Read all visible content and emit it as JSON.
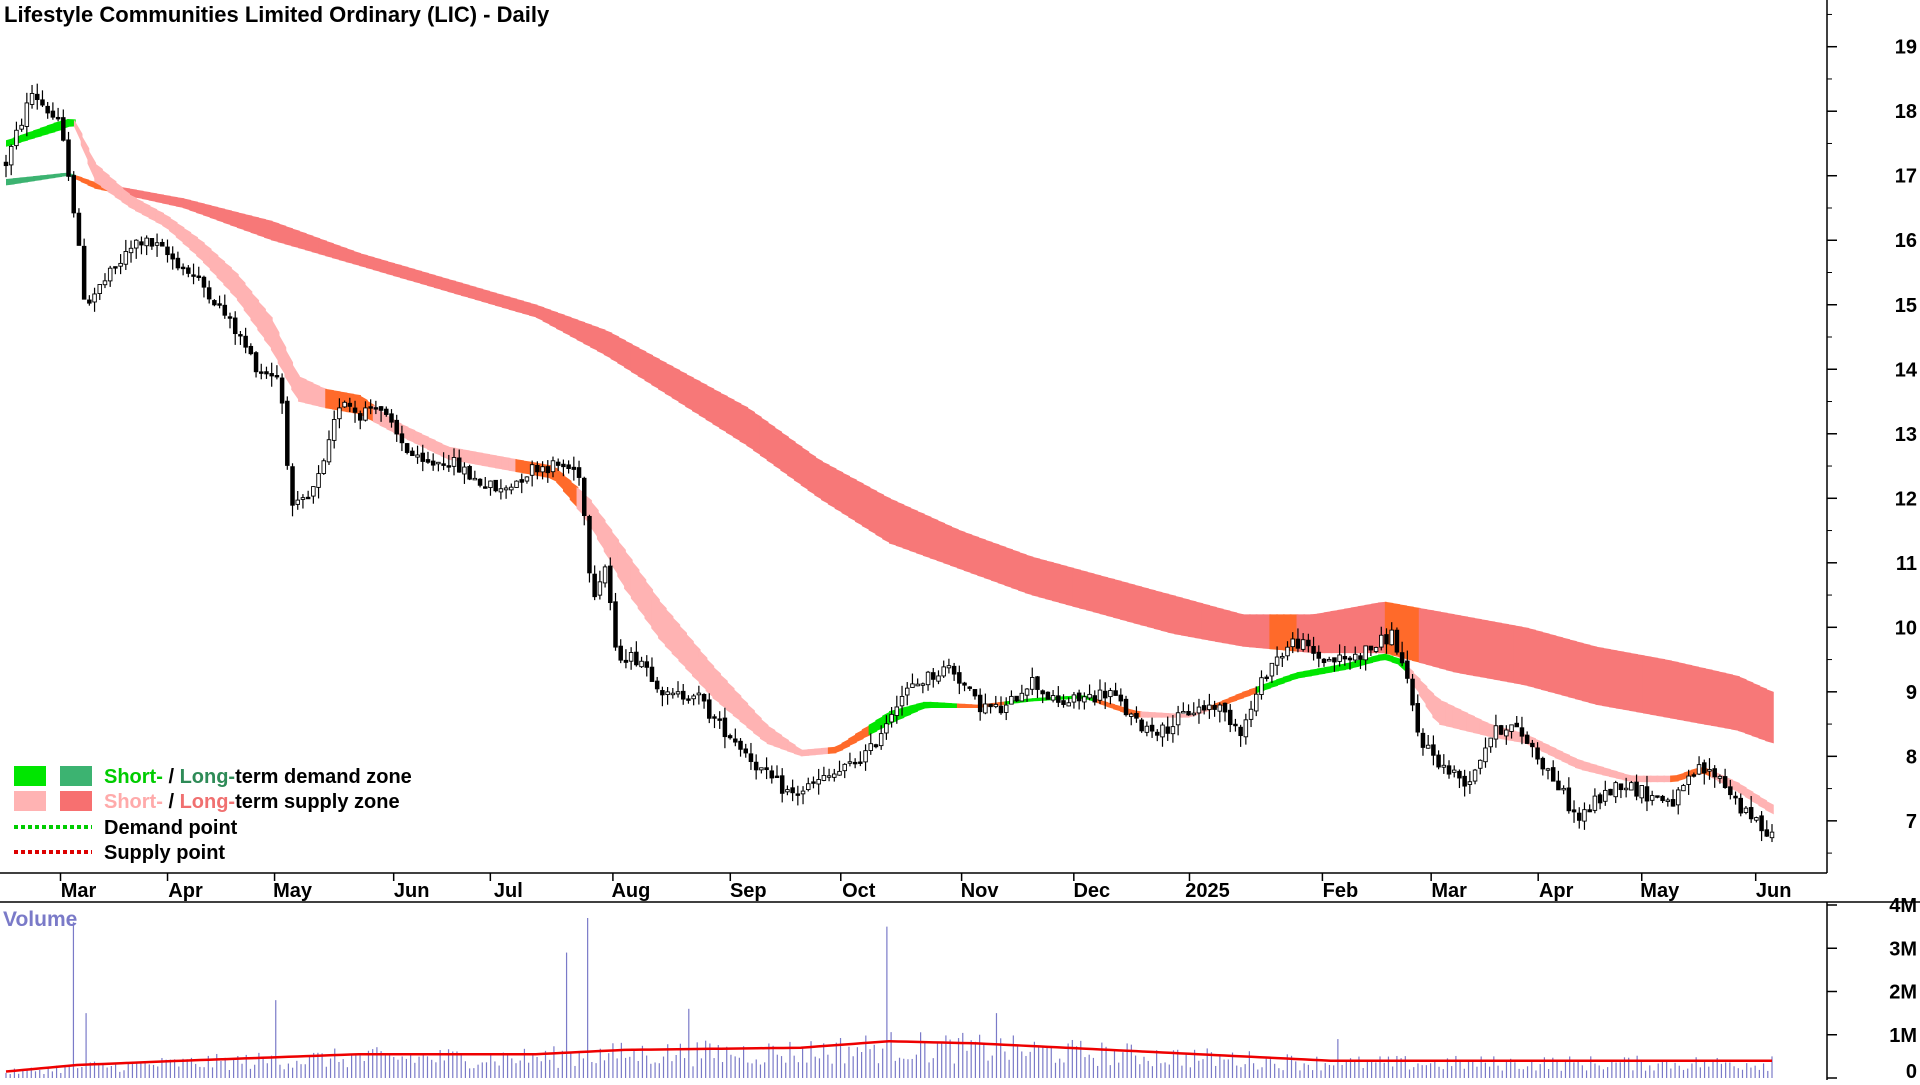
{
  "chart_data": {
    "type": "candlestick",
    "title": "Lifestyle Communities Limited Ordinary (LIC) - Daily",
    "x_tick_labels": [
      "Mar",
      "Apr",
      "May",
      "Jun",
      "Jul",
      "Aug",
      "Sep",
      "Oct",
      "Nov",
      "Dec",
      "2025",
      "Feb",
      "Mar",
      "Apr",
      "May",
      "Jun"
    ],
    "x_tick_positions": [
      0.042,
      0.104,
      0.166,
      0.235,
      0.291,
      0.362,
      0.43,
      0.494,
      0.564,
      0.629,
      0.696,
      0.773,
      0.836,
      0.898,
      0.958,
      1.024
    ],
    "y_ticks": [
      7,
      8,
      9,
      10,
      11,
      12,
      13,
      14,
      15,
      16,
      17,
      18,
      19
    ],
    "ylim": [
      6.3,
      19.6
    ],
    "price_path": [
      [
        0.0,
        17.2
      ],
      [
        0.015,
        18.3
      ],
      [
        0.03,
        17.8
      ],
      [
        0.036,
        17.0
      ],
      [
        0.045,
        15.0
      ],
      [
        0.06,
        15.5
      ],
      [
        0.075,
        16.0
      ],
      [
        0.085,
        15.9
      ],
      [
        0.1,
        15.6
      ],
      [
        0.115,
        15.2
      ],
      [
        0.13,
        14.6
      ],
      [
        0.143,
        14.0
      ],
      [
        0.155,
        13.9
      ],
      [
        0.162,
        11.8
      ],
      [
        0.172,
        12.0
      ],
      [
        0.18,
        12.5
      ],
      [
        0.19,
        13.6
      ],
      [
        0.2,
        13.3
      ],
      [
        0.21,
        13.5
      ],
      [
        0.22,
        13.0
      ],
      [
        0.235,
        12.5
      ],
      [
        0.25,
        12.6
      ],
      [
        0.265,
        12.3
      ],
      [
        0.28,
        12.1
      ],
      [
        0.3,
        12.5
      ],
      [
        0.315,
        12.5
      ],
      [
        0.325,
        12.4
      ],
      [
        0.332,
        10.5
      ],
      [
        0.34,
        11.0
      ],
      [
        0.345,
        9.6
      ],
      [
        0.36,
        9.5
      ],
      [
        0.375,
        8.9
      ],
      [
        0.39,
        9.0
      ],
      [
        0.4,
        8.6
      ],
      [
        0.415,
        8.2
      ],
      [
        0.43,
        7.7
      ],
      [
        0.445,
        7.4
      ],
      [
        0.46,
        7.6
      ],
      [
        0.475,
        7.8
      ],
      [
        0.49,
        8.1
      ],
      [
        0.505,
        8.9
      ],
      [
        0.52,
        9.2
      ],
      [
        0.535,
        9.4
      ],
      [
        0.55,
        8.8
      ],
      [
        0.565,
        8.7
      ],
      [
        0.58,
        9.2
      ],
      [
        0.595,
        8.8
      ],
      [
        0.61,
        8.9
      ],
      [
        0.625,
        9.0
      ],
      [
        0.64,
        8.5
      ],
      [
        0.655,
        8.4
      ],
      [
        0.67,
        8.7
      ],
      [
        0.685,
        8.8
      ],
      [
        0.7,
        8.4
      ],
      [
        0.715,
        9.4
      ],
      [
        0.73,
        9.8
      ],
      [
        0.745,
        9.5
      ],
      [
        0.76,
        9.5
      ],
      [
        0.775,
        9.7
      ],
      [
        0.785,
        9.9
      ],
      [
        0.792,
        9.3
      ],
      [
        0.8,
        8.3
      ],
      [
        0.815,
        7.8
      ],
      [
        0.828,
        7.6
      ],
      [
        0.84,
        8.3
      ],
      [
        0.85,
        8.5
      ],
      [
        0.86,
        8.3
      ],
      [
        0.87,
        7.9
      ],
      [
        0.88,
        7.5
      ],
      [
        0.89,
        7.0
      ],
      [
        0.9,
        7.3
      ],
      [
        0.915,
        7.6
      ],
      [
        0.93,
        7.4
      ],
      [
        0.945,
        7.3
      ],
      [
        0.958,
        7.8
      ],
      [
        0.97,
        7.7
      ],
      [
        0.985,
        7.1
      ],
      [
        1.0,
        6.8
      ]
    ],
    "short_term_zone_path": [
      [
        0.0,
        17.45,
        17.55
      ],
      [
        0.03,
        17.7,
        17.85
      ],
      [
        0.038,
        17.8,
        17.9
      ],
      [
        0.05,
        16.9,
        17.2
      ],
      [
        0.07,
        16.5,
        16.7
      ],
      [
        0.09,
        16.2,
        16.4
      ],
      [
        0.11,
        15.7,
        16.0
      ],
      [
        0.13,
        15.1,
        15.5
      ],
      [
        0.15,
        14.3,
        14.8
      ],
      [
        0.165,
        13.5,
        13.9
      ],
      [
        0.18,
        13.4,
        13.7
      ],
      [
        0.2,
        13.3,
        13.6
      ],
      [
        0.22,
        13.0,
        13.2
      ],
      [
        0.25,
        12.6,
        12.8
      ],
      [
        0.29,
        12.4,
        12.6
      ],
      [
        0.31,
        12.3,
        12.5
      ],
      [
        0.33,
        11.6,
        12.0
      ],
      [
        0.35,
        10.6,
        11.2
      ],
      [
        0.37,
        9.8,
        10.4
      ],
      [
        0.4,
        8.9,
        9.4
      ],
      [
        0.43,
        8.2,
        8.5
      ],
      [
        0.45,
        8.0,
        8.1
      ],
      [
        0.47,
        8.05,
        8.15
      ],
      [
        0.5,
        8.5,
        8.7
      ],
      [
        0.52,
        8.75,
        8.85
      ],
      [
        0.55,
        8.75,
        8.8
      ],
      [
        0.58,
        8.85,
        8.9
      ],
      [
        0.61,
        8.9,
        8.95
      ],
      [
        0.64,
        8.6,
        8.7
      ],
      [
        0.67,
        8.6,
        8.65
      ],
      [
        0.7,
        8.9,
        9.0
      ],
      [
        0.73,
        9.2,
        9.3
      ],
      [
        0.76,
        9.35,
        9.45
      ],
      [
        0.78,
        9.5,
        9.6
      ],
      [
        0.79,
        9.4,
        9.5
      ],
      [
        0.81,
        8.5,
        8.9
      ],
      [
        0.84,
        8.3,
        8.5
      ],
      [
        0.86,
        8.2,
        8.35
      ],
      [
        0.89,
        7.8,
        7.95
      ],
      [
        0.92,
        7.6,
        7.7
      ],
      [
        0.945,
        7.6,
        7.7
      ],
      [
        0.96,
        7.75,
        7.85
      ],
      [
        0.98,
        7.45,
        7.6
      ],
      [
        1.0,
        7.1,
        7.25
      ]
    ],
    "long_term_zone_path": [
      [
        0.0,
        16.85,
        16.95
      ],
      [
        0.035,
        17.0,
        17.05
      ],
      [
        0.05,
        16.8,
        16.9
      ],
      [
        0.1,
        16.5,
        16.65
      ],
      [
        0.15,
        16.0,
        16.3
      ],
      [
        0.2,
        15.6,
        15.8
      ],
      [
        0.25,
        15.2,
        15.4
      ],
      [
        0.3,
        14.8,
        15.0
      ],
      [
        0.34,
        14.2,
        14.6
      ],
      [
        0.38,
        13.5,
        14.0
      ],
      [
        0.42,
        12.8,
        13.4
      ],
      [
        0.46,
        12.0,
        12.6
      ],
      [
        0.5,
        11.3,
        12.0
      ],
      [
        0.54,
        10.9,
        11.5
      ],
      [
        0.58,
        10.5,
        11.1
      ],
      [
        0.62,
        10.2,
        10.8
      ],
      [
        0.66,
        9.9,
        10.5
      ],
      [
        0.7,
        9.7,
        10.2
      ],
      [
        0.74,
        9.6,
        10.2
      ],
      [
        0.78,
        9.6,
        10.4
      ],
      [
        0.82,
        9.3,
        10.2
      ],
      [
        0.86,
        9.1,
        10.0
      ],
      [
        0.9,
        8.8,
        9.7
      ],
      [
        0.94,
        8.6,
        9.5
      ],
      [
        0.98,
        8.4,
        9.25
      ],
      [
        1.0,
        8.2,
        9.0
      ]
    ],
    "volume": {
      "label": "Volume",
      "y_ticks": [
        "0",
        "1M",
        "2M",
        "3M",
        "4M"
      ],
      "ylim": [
        0,
        4
      ],
      "spikes": [
        [
          0.039,
          3.6
        ],
        [
          0.045,
          1.5
        ],
        [
          0.153,
          1.8
        ],
        [
          0.318,
          2.9
        ],
        [
          0.33,
          3.7
        ],
        [
          0.387,
          1.6
        ],
        [
          0.498,
          3.5
        ],
        [
          0.56,
          1.5
        ],
        [
          0.755,
          0.9
        ],
        [
          1.0,
          0.5
        ]
      ],
      "average_path": [
        [
          0.0,
          0.15
        ],
        [
          0.04,
          0.3
        ],
        [
          0.1,
          0.4
        ],
        [
          0.2,
          0.55
        ],
        [
          0.3,
          0.55
        ],
        [
          0.35,
          0.65
        ],
        [
          0.45,
          0.7
        ],
        [
          0.5,
          0.85
        ],
        [
          0.55,
          0.8
        ],
        [
          0.6,
          0.7
        ],
        [
          0.65,
          0.6
        ],
        [
          0.7,
          0.5
        ],
        [
          0.75,
          0.4
        ],
        [
          0.8,
          0.4
        ],
        [
          0.9,
          0.4
        ],
        [
          1.0,
          0.4
        ]
      ]
    },
    "legend": [
      {
        "label_short": "Short-",
        "label_sep": " / ",
        "label_long": "Long-",
        "label_rest": "term demand zone",
        "short_color": "#00e600",
        "long_color": "#3cb371",
        "short_text_color": "#00cc00",
        "long_text_color": "#2e8b57"
      },
      {
        "label_short": "Short-",
        "label_sep": " / ",
        "label_long": "Long-",
        "label_rest": "term supply zone",
        "short_color": "#ffb3b3",
        "long_color": "#f77070",
        "short_text_color": "#ffaaaa",
        "long_text_color": "#f07070"
      },
      {
        "label": "Demand point",
        "color": "#00cc00"
      },
      {
        "label": "Supply point",
        "color": "#dd0000"
      }
    ],
    "colors": {
      "short_supply": "#ffb3b3",
      "long_supply": "#f77878",
      "short_demand": "#00e600",
      "long_demand": "#3cb371",
      "transition": "#ff6a2a",
      "volume_bar": "#7a7ac8",
      "volume_avg": "#ee0000",
      "candle": "#000000"
    }
  }
}
